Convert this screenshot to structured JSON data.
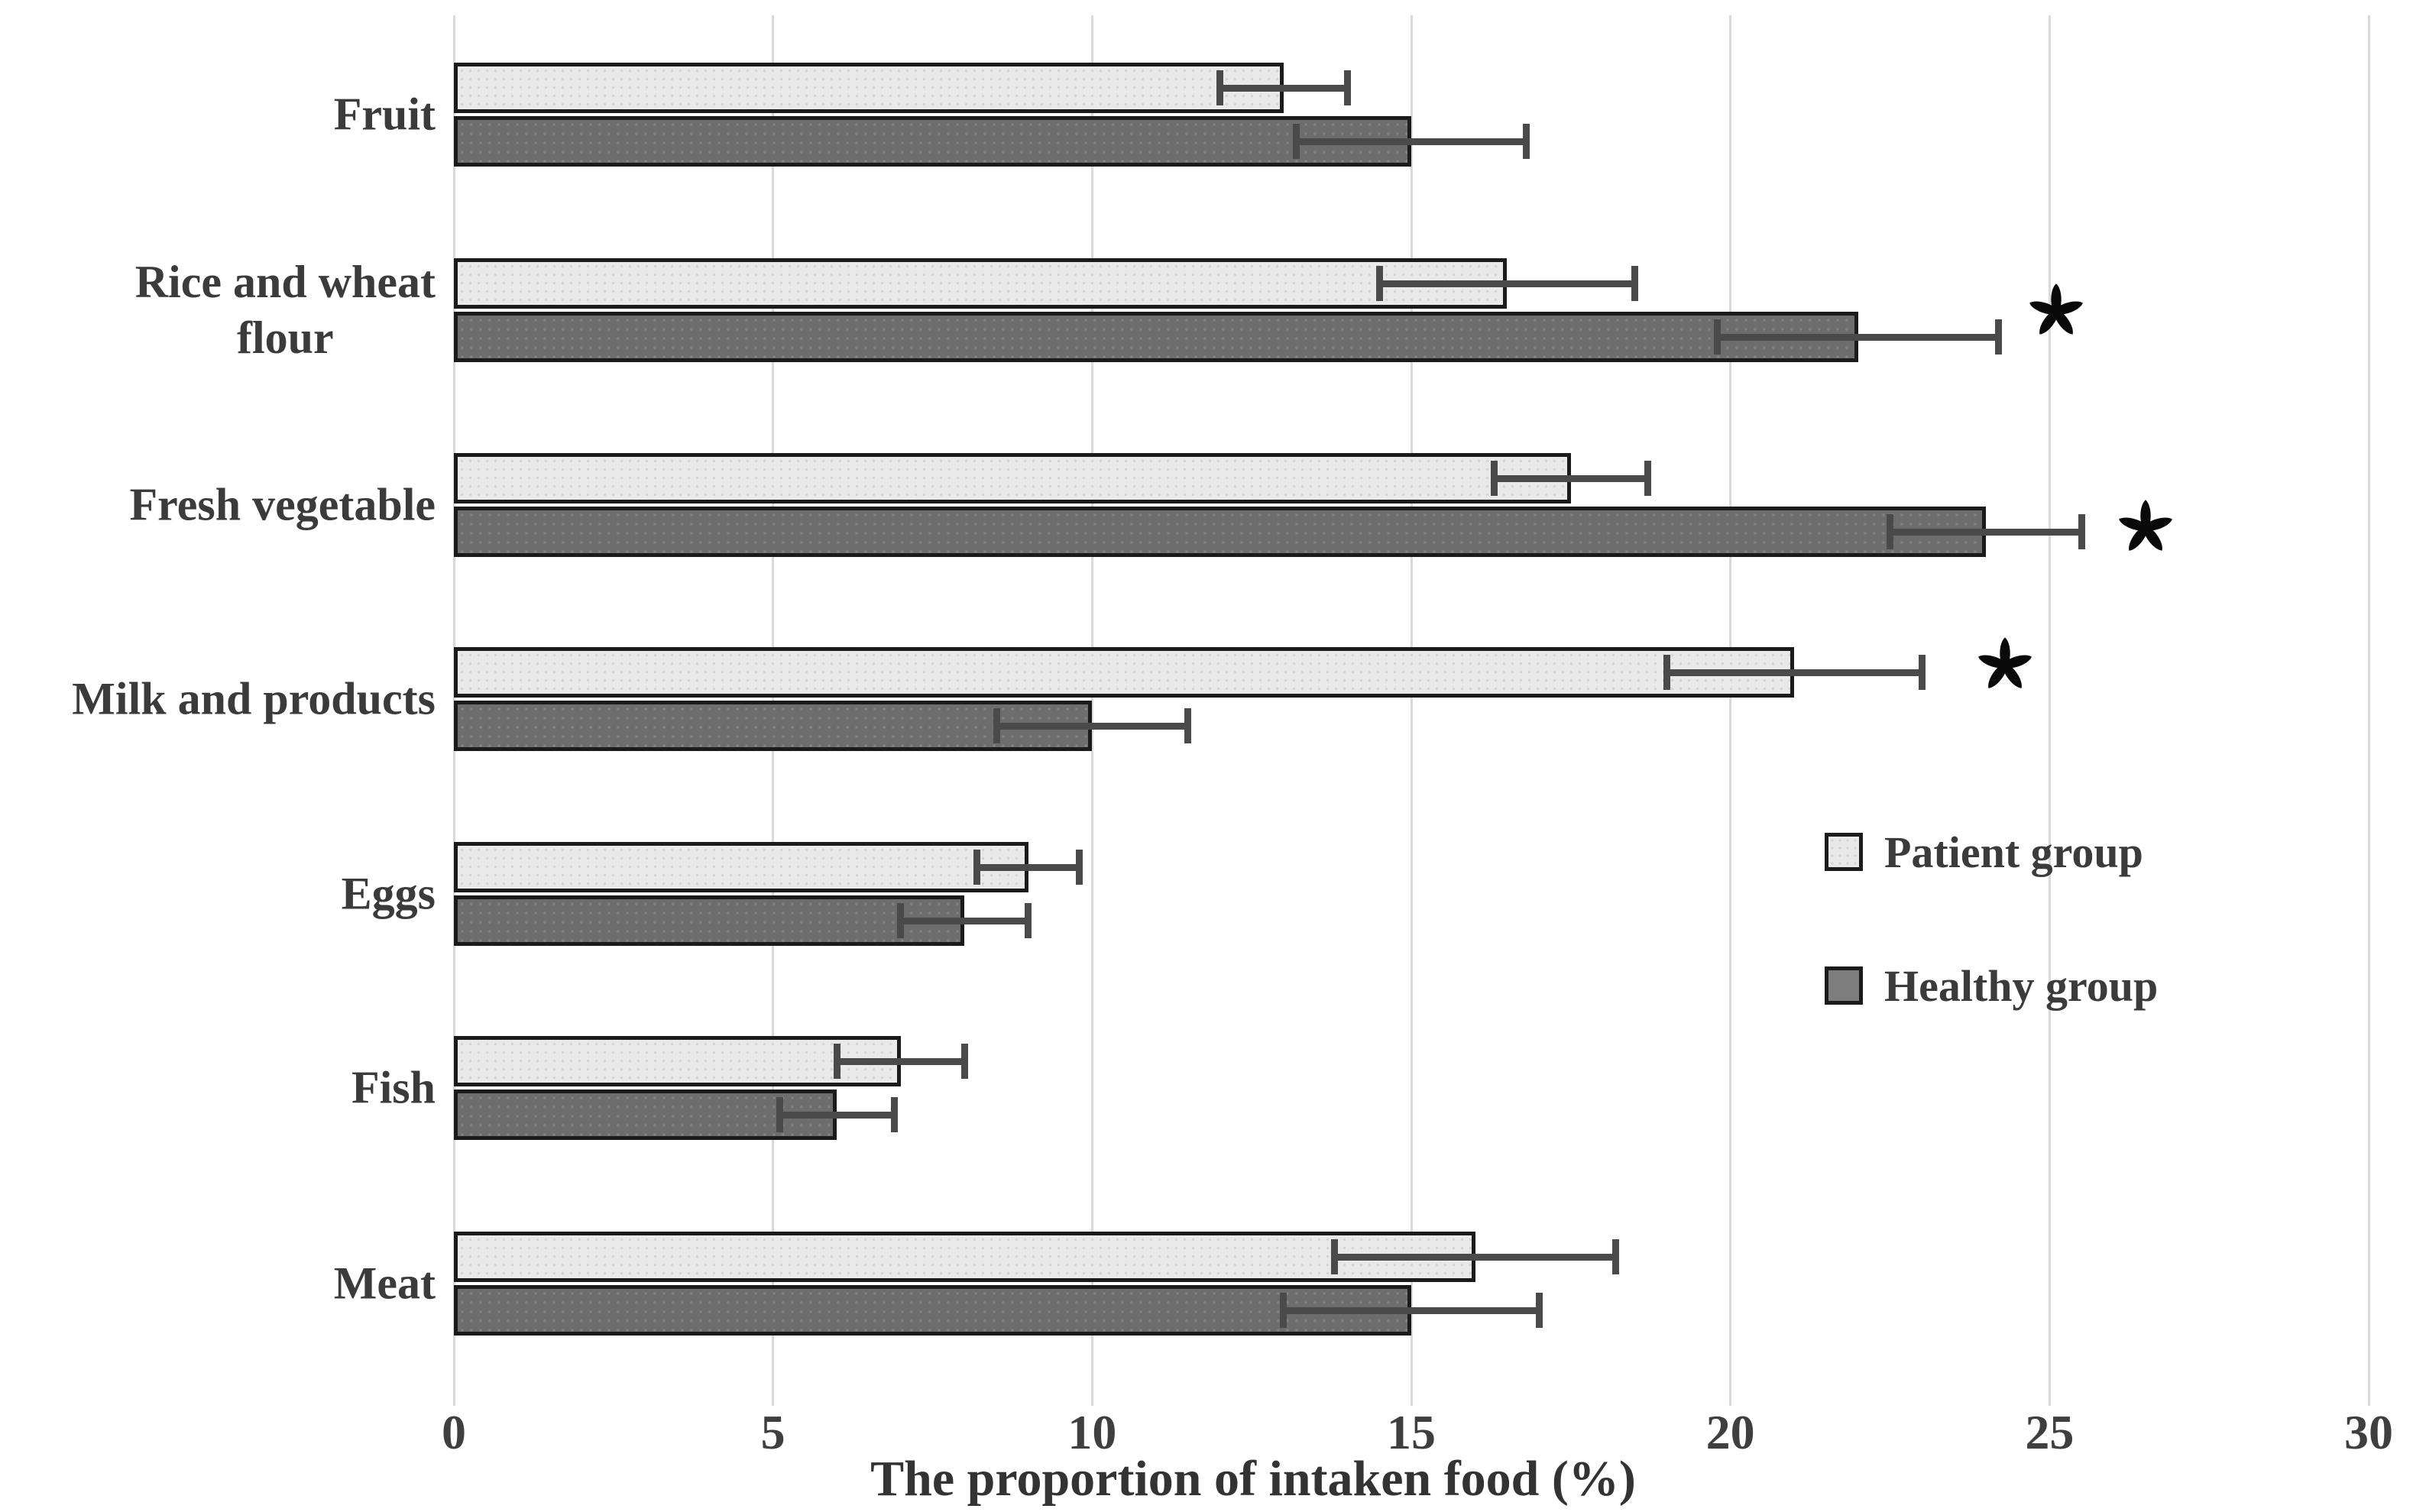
{
  "figure": {
    "kind": "grouped horizontal bar chart with error bars"
  },
  "chart_data": {
    "type": "bar",
    "orientation": "horizontal",
    "title": "",
    "xlabel": "The proportion of intaken food (%)",
    "ylabel": "",
    "categories": [
      "Fruit",
      "Rice and wheat\nflour",
      "Fresh vegetable",
      "Milk and products",
      "Eggs",
      "Fish",
      "Meat"
    ],
    "xlim": [
      0,
      30
    ],
    "xticks": [
      0,
      5,
      10,
      15,
      20,
      25,
      30
    ],
    "grid": "vertical-light-gray",
    "legend_position": "middle-right",
    "series": [
      {
        "name": "Patient group",
        "color": "#e9e9e9",
        "border_color": "#1b1b1b",
        "values": [
          13,
          16.5,
          17.5,
          21,
          9,
          7,
          16
        ],
        "errors": [
          1.0,
          2.0,
          1.2,
          2.0,
          0.8,
          1.0,
          2.2
        ]
      },
      {
        "name": "Healthy group",
        "color": "#6d6d6d",
        "border_color": "#1b1b1b",
        "values": [
          15,
          22,
          24,
          10,
          8,
          6,
          15
        ],
        "errors": [
          1.8,
          2.2,
          1.5,
          1.5,
          1.0,
          0.9,
          2.0
        ]
      }
    ],
    "significance_markers": [
      {
        "category_index": 1,
        "category": "Rice and wheat flour",
        "marker": "*",
        "x": 25.1,
        "attached_to": "between-bars"
      },
      {
        "category_index": 2,
        "category": "Fresh vegetable",
        "marker": "*",
        "x": 26.5,
        "attached_to": "healthy-bar"
      },
      {
        "category_index": 3,
        "category": "Milk and products",
        "marker": "*",
        "x": 24.3,
        "attached_to": "patient-bar"
      }
    ]
  },
  "legend": {
    "items": [
      {
        "label": "Patient group",
        "swatch_color": "#e9e9e9"
      },
      {
        "label": "Healthy group",
        "swatch_color": "#7e7e7e"
      }
    ]
  },
  "appearance": {
    "background": "#ffffff",
    "grid_color": "#dadada",
    "text_color": "#3b3b3b",
    "error_bar_color": "#4a4a4a",
    "significance_marker_color": "#0a0a0a"
  }
}
